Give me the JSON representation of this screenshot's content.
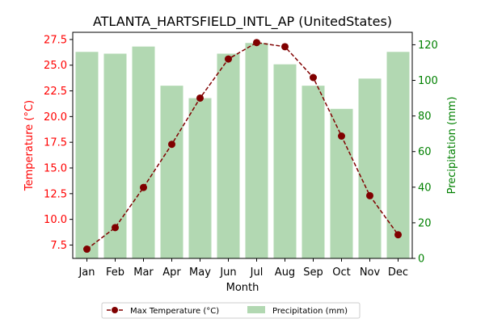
{
  "chart_data": {
    "type": "bar+line",
    "title": "ATLANTA_HARTSFIELD_INTL_AP (UnitedStates)",
    "xlabel": "Month",
    "categories": [
      "Jan",
      "Feb",
      "Mar",
      "Apr",
      "May",
      "Jun",
      "Jul",
      "Aug",
      "Sep",
      "Oct",
      "Nov",
      "Dec"
    ],
    "left_axis": {
      "label": "Temperature (°C)",
      "ylim": [
        6.2,
        28.2
      ],
      "ticks": [
        "7.5",
        "10.0",
        "12.5",
        "15.0",
        "17.5",
        "20.0",
        "22.5",
        "25.0",
        "27.5"
      ],
      "color": "#ff0000"
    },
    "right_axis": {
      "label": "Precipitation (mm)",
      "ylim": [
        0,
        127
      ],
      "ticks": [
        "0",
        "20",
        "40",
        "60",
        "80",
        "100",
        "120"
      ],
      "color": "#008000"
    },
    "series": [
      {
        "name": "Max Temperature (°C)",
        "type": "line",
        "axis": "left",
        "color": "#800000",
        "values": [
          7.1,
          9.2,
          13.1,
          17.3,
          21.8,
          25.6,
          27.2,
          26.8,
          23.8,
          18.1,
          12.3,
          8.5
        ]
      },
      {
        "name": "Precipitation (mm)",
        "type": "bar",
        "axis": "right",
        "color": "#b2d8b2",
        "values": [
          116,
          115,
          119,
          97,
          90,
          115,
          121,
          109,
          97,
          84,
          101,
          116
        ]
      }
    ],
    "legend": "bottom-center"
  }
}
